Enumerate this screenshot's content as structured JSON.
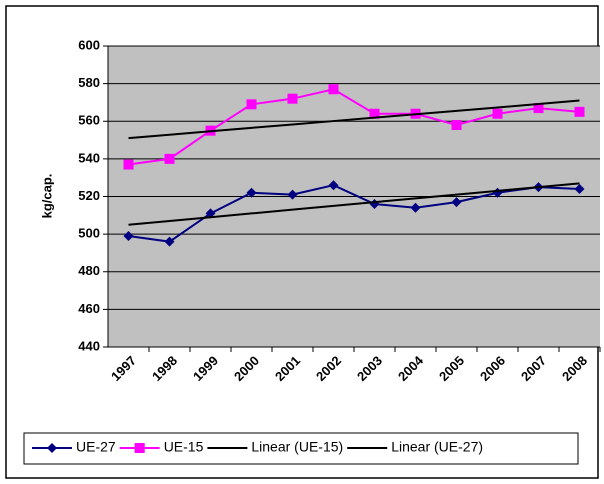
{
  "chart_data": {
    "type": "line",
    "y_label": "kg/cap.",
    "categories": [
      "1997",
      "1998",
      "1999",
      "2000",
      "2001",
      "2002",
      "2003",
      "2004",
      "2005",
      "2006",
      "2007",
      "2008"
    ],
    "series": [
      {
        "name": "UE-27",
        "color": "#000080",
        "marker": "diamond",
        "values": [
          499,
          496,
          511,
          522,
          521,
          526,
          516,
          514,
          517,
          522,
          525,
          524
        ]
      },
      {
        "name": "UE-15",
        "color": "#ff00ff",
        "marker": "square",
        "values": [
          537,
          540,
          555,
          569,
          572,
          577,
          564,
          564,
          558,
          564,
          567,
          565
        ]
      },
      {
        "name": "Linear (UE-15)",
        "color": "#000000",
        "marker": "none",
        "values": [
          551.0,
          552.8,
          554.7,
          556.5,
          558.3,
          560.1,
          561.9,
          563.7,
          565.5,
          567.3,
          569.2,
          571.0
        ]
      },
      {
        "name": "Linear (UE-27)",
        "color": "#000000",
        "marker": "none",
        "values": [
          505,
          507,
          509,
          511,
          513,
          515,
          517,
          519,
          521,
          523,
          525,
          527
        ]
      }
    ],
    "ylim": [
      440,
      600
    ],
    "yticks": [
      440,
      460,
      480,
      500,
      520,
      540,
      560,
      580,
      600
    ],
    "grid": true,
    "plot_background": "#c0c0c0",
    "legend": "bottom"
  }
}
